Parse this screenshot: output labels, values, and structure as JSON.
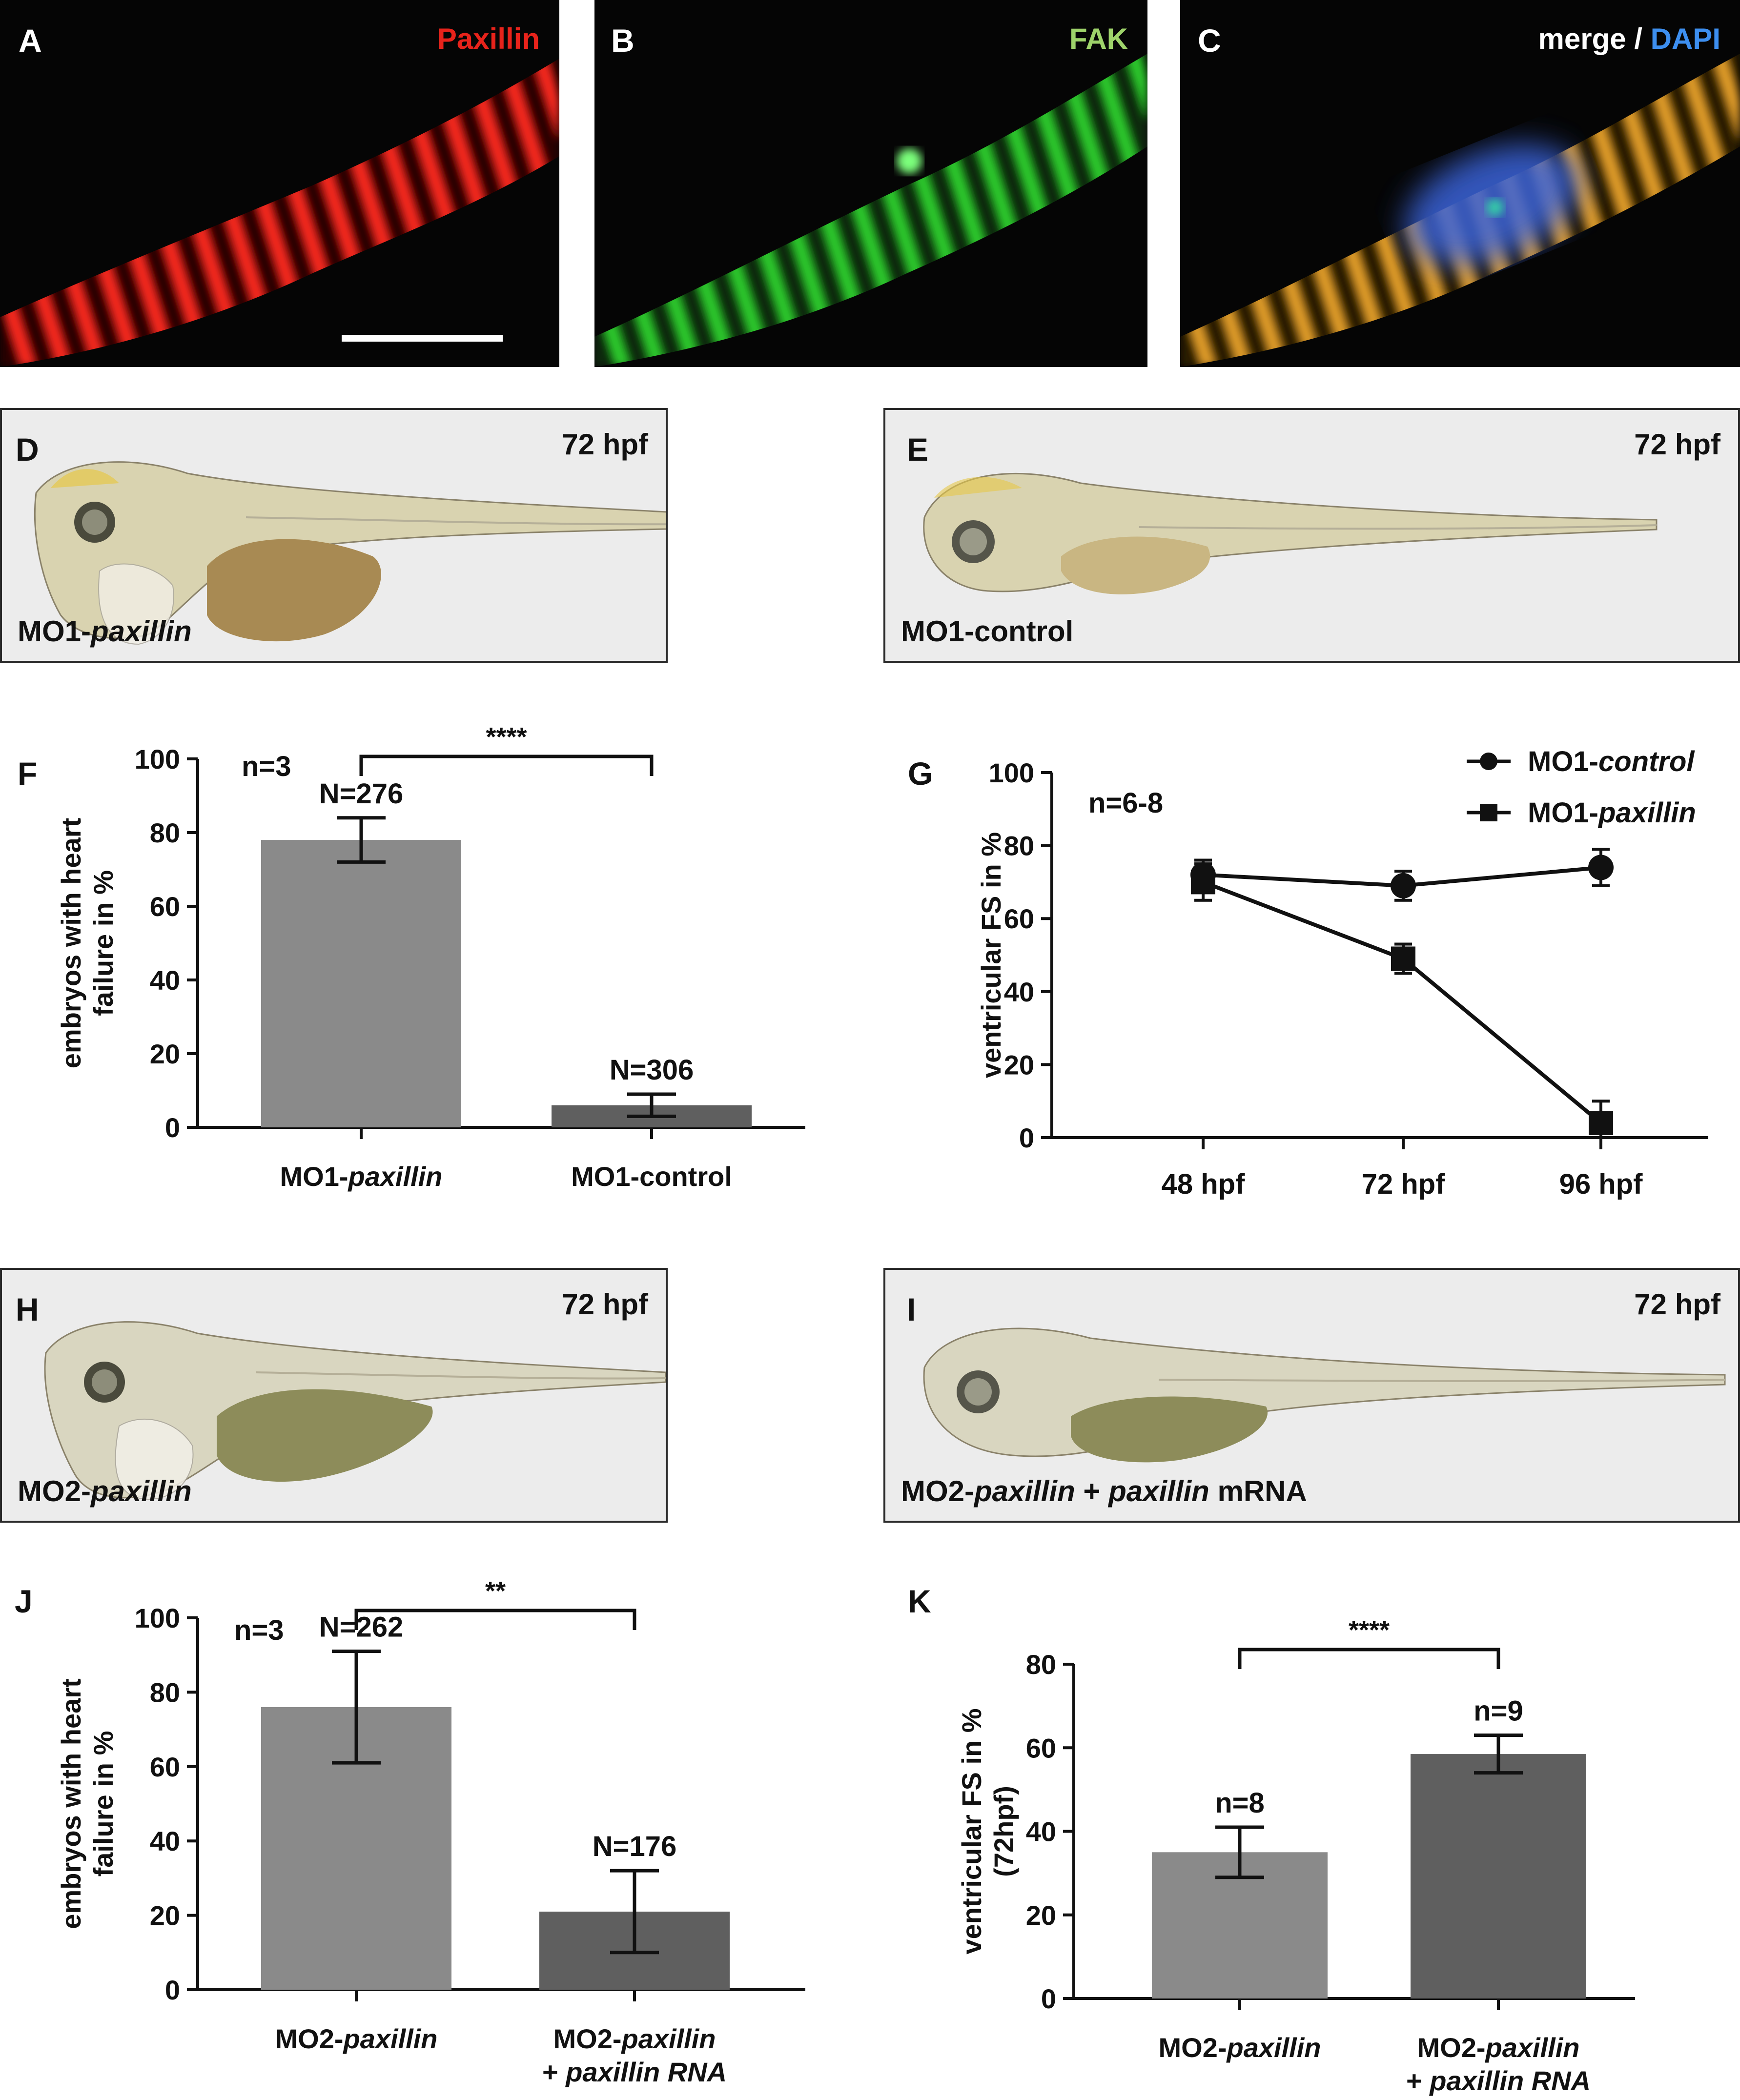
{
  "panel_labels": {
    "A": "A",
    "B": "B",
    "C": "C",
    "D": "D",
    "E": "E",
    "F": "F",
    "G": "G",
    "H": "H",
    "I": "I",
    "J": "J",
    "K": "K"
  },
  "micro": {
    "a_title": "Paxillin",
    "b_title": "FAK",
    "c_title_merge": "merge /",
    "c_title_dapi": "DAPI",
    "colors": {
      "paxillin": "#e8231b",
      "fak": "#2bc22b",
      "merge": "#e6a02a",
      "dapi": "#3b63d9",
      "b_label": "#9ed36a",
      "c_dapi_label": "#3d8ff0"
    }
  },
  "fish": {
    "stage": "72 hpf",
    "d_caption_a": "MO1-",
    "d_caption_b": "paxillin",
    "e_caption": "MO1-control",
    "h_caption_a": "MO2-",
    "h_caption_b": "paxillin",
    "i_caption_a": "MO2-",
    "i_caption_b": "paxillin",
    "i_caption_c": " + ",
    "i_caption_d": "paxillin",
    "i_caption_e": " mRNA"
  },
  "chart_data": [
    {
      "panel": "F",
      "type": "bar",
      "ylabel_line1": "embryos with heart",
      "ylabel_line2": "failure in %",
      "ylim": [
        0,
        100
      ],
      "yticks": [
        "0",
        "20",
        "40",
        "60",
        "80",
        "100"
      ],
      "categories": [
        {
          "prefix": "MO1-",
          "italic": "paxillin",
          "suffix": ""
        },
        {
          "prefix": "MO1-control",
          "italic": "",
          "suffix": ""
        }
      ],
      "values": [
        78,
        6
      ],
      "errors": [
        6,
        3
      ],
      "bar_colors": [
        "#8a8a8a",
        "#5f5f5f"
      ],
      "bar_labels": [
        "N=276",
        "N=306"
      ],
      "n_label": "n=3",
      "significance": "****"
    },
    {
      "panel": "G",
      "type": "line",
      "ylabel": "ventricular FS in %",
      "ylim": [
        0,
        100
      ],
      "yticks": [
        "0",
        "20",
        "40",
        "60",
        "80",
        "100"
      ],
      "x": [
        "48 hpf",
        "72 hpf",
        "96 hpf"
      ],
      "n_label": "n=6-8",
      "legend_position": "top-right",
      "series": [
        {
          "name_prefix": "MO1-",
          "name_italic": "control",
          "marker": "circle",
          "values": [
            72,
            69,
            74
          ],
          "errors": [
            4,
            4,
            5
          ]
        },
        {
          "name_prefix": "MO1-",
          "name_italic": "paxillin",
          "marker": "square",
          "values": [
            70,
            49,
            4
          ],
          "errors": [
            5,
            4,
            6
          ]
        }
      ]
    },
    {
      "panel": "J",
      "type": "bar",
      "ylabel_line1": "embryos with heart",
      "ylabel_line2": "failure in %",
      "ylim": [
        0,
        100
      ],
      "yticks": [
        "0",
        "20",
        "40",
        "60",
        "80",
        "100"
      ],
      "categories": [
        {
          "prefix": "MO2-",
          "italic": "paxillin",
          "suffix": ""
        },
        {
          "prefix": "MO2-",
          "italic": "paxillin",
          "suffix": "",
          "line2": "+ paxillin RNA"
        }
      ],
      "values": [
        76,
        21
      ],
      "errors": [
        15,
        11
      ],
      "bar_colors": [
        "#8a8a8a",
        "#5f5f5f"
      ],
      "bar_labels": [
        "N=262",
        "N=176"
      ],
      "n_label": "n=3",
      "significance": "**"
    },
    {
      "panel": "K",
      "type": "bar",
      "ylabel_line1": "ventricular FS in %",
      "ylabel_line2": "(72hpf)",
      "ylim": [
        0,
        80
      ],
      "yticks": [
        "0",
        "20",
        "40",
        "60",
        "80"
      ],
      "categories": [
        {
          "prefix": "MO2-",
          "italic": "paxillin",
          "suffix": ""
        },
        {
          "prefix": "MO2-",
          "italic": "paxillin",
          "suffix": "",
          "line2": "+ paxillin RNA"
        }
      ],
      "values": [
        35,
        58.5
      ],
      "errors": [
        6,
        4.5
      ],
      "bar_colors": [
        "#8a8a8a",
        "#5f5f5f"
      ],
      "bar_labels": [
        "n=8",
        "n=9"
      ],
      "significance": "****"
    }
  ]
}
